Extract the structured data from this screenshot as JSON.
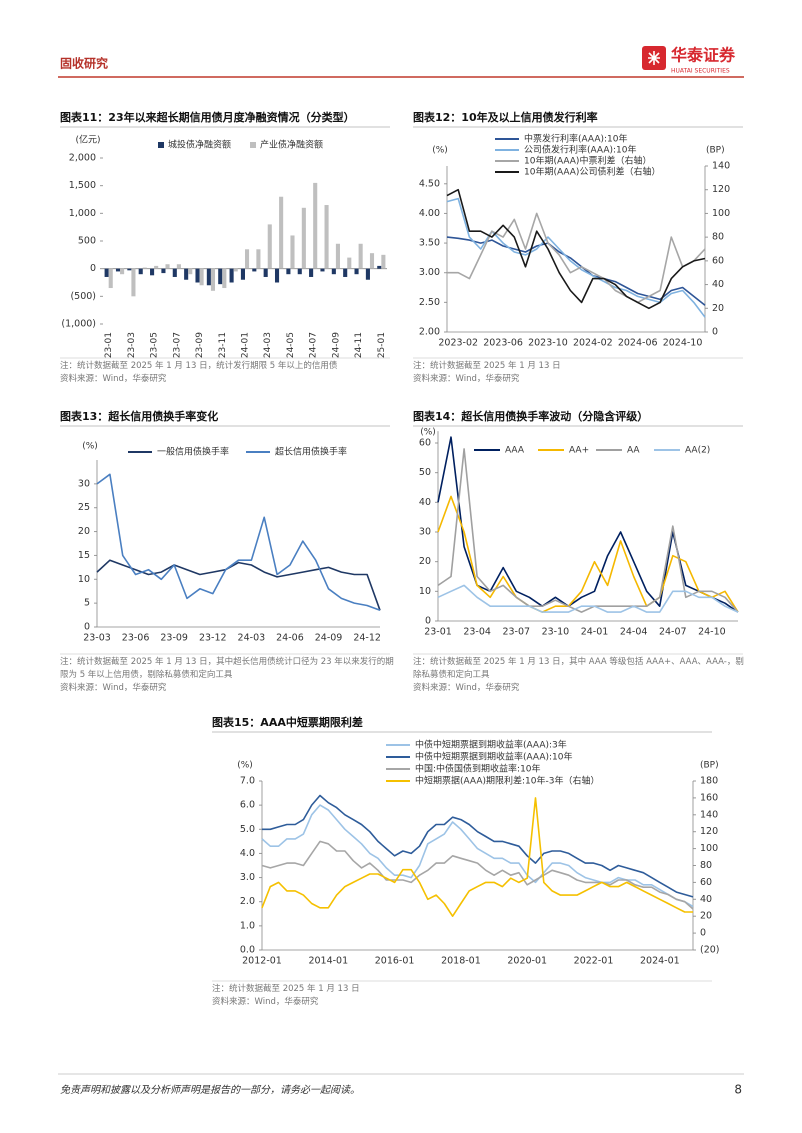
{
  "header": {
    "section": "固收研究",
    "brand": "华泰证券",
    "brand_en": "HUATAI SECURITIES"
  },
  "chart_data": [
    {
      "type": "bar",
      "title": "图表11：23年以来超长期信用债月度净融资情况（分类型）",
      "y_unit": "(亿元)",
      "categories": [
        "23-01",
        null,
        "23-03",
        null,
        "23-05",
        null,
        "23-07",
        null,
        "23-09",
        null,
        "23-11",
        null,
        "24-01",
        null,
        "24-03",
        null,
        "24-05",
        null,
        "24-07",
        null,
        "24-09",
        null,
        "24-11",
        null,
        "25-01"
      ],
      "series": [
        {
          "name": "城投债净融资额",
          "color": "#1f3864",
          "values": [
            -150,
            -50,
            -30,
            -100,
            -120,
            -80,
            -150,
            -200,
            -250,
            -300,
            -280,
            -250,
            -200,
            -50,
            -150,
            -250,
            -100,
            -100,
            -150,
            -50,
            -100,
            -150,
            -100,
            -200,
            50
          ]
        },
        {
          "name": "产业债净融资额",
          "color": "#bfbfbf",
          "values": [
            -350,
            -100,
            -500,
            20,
            50,
            80,
            80,
            -100,
            -300,
            -400,
            -350,
            -50,
            350,
            350,
            800,
            1300,
            600,
            1100,
            1550,
            1150,
            450,
            200,
            450,
            280,
            250
          ]
        }
      ],
      "ylim": [
        -1000,
        2000
      ],
      "yticks": [
        {
          "value": -1000,
          "label": "(1,000)"
        },
        {
          "value": -500,
          "label": "(500)"
        },
        0,
        500,
        {
          "value": 1000,
          "label": "1,000"
        },
        {
          "value": 1500,
          "label": "1,500"
        },
        {
          "value": 2000,
          "label": "2,000"
        }
      ],
      "note": "注：统计数据截至 2025 年 1 月 13 日，统计发行期限 5 年以上的信用债",
      "source": "资料来源：Wind，华泰研究"
    },
    {
      "type": "line",
      "title": "图表12：10年及以上信用债发行利率",
      "y_unit": "(%)",
      "y2_unit": "(BP)",
      "categories": [
        null,
        "2023-02",
        null,
        null,
        null,
        "2023-06",
        null,
        null,
        null,
        "2023-10",
        null,
        null,
        null,
        "2024-02",
        null,
        null,
        null,
        "2024-06",
        null,
        null,
        null,
        "2024-10",
        null,
        null
      ],
      "series": [
        {
          "name": "中票发行利率(AAA):10年",
          "color": "#2e5597",
          "values": [
            3.6,
            3.58,
            3.55,
            3.5,
            3.55,
            3.45,
            3.4,
            3.35,
            3.45,
            3.5,
            3.35,
            3.25,
            3.1,
            2.95,
            2.9,
            2.85,
            2.75,
            2.65,
            2.6,
            2.55,
            2.7,
            2.75,
            2.6,
            2.45
          ]
        },
        {
          "name": "公司债发行利率(AAA):10年",
          "color": "#7fb2e0",
          "values": [
            4.2,
            4.25,
            3.6,
            3.4,
            3.7,
            3.5,
            3.35,
            3.3,
            3.4,
            3.6,
            3.4,
            3.2,
            3.05,
            2.95,
            2.85,
            2.75,
            2.7,
            2.6,
            2.55,
            2.5,
            2.65,
            2.7,
            2.5,
            2.25
          ]
        },
        {
          "name": "10年期(AAA)中票利差（右轴）",
          "color": "#a6a6a6",
          "axis": "y2",
          "values": [
            50,
            50,
            45,
            65,
            85,
            80,
            95,
            70,
            100,
            75,
            65,
            50,
            55,
            50,
            45,
            35,
            30,
            25,
            30,
            35,
            80,
            55,
            60,
            70
          ]
        },
        {
          "name": "10年期(AAA)公司债利差（右轴）",
          "color": "#1a1a1a",
          "axis": "y2",
          "values": [
            115,
            120,
            85,
            85,
            80,
            90,
            80,
            55,
            85,
            70,
            50,
            35,
            25,
            45,
            45,
            40,
            30,
            25,
            20,
            25,
            45,
            55,
            60,
            62
          ]
        }
      ],
      "ylim": [
        2.0,
        4.8
      ],
      "yticks": [
        {
          "value": 2.0,
          "label": "2.00"
        },
        {
          "value": 2.5,
          "label": "2.50"
        },
        {
          "value": 3.0,
          "label": "3.00"
        },
        {
          "value": 3.5,
          "label": "3.50"
        },
        {
          "value": 4.0,
          "label": "4.00"
        },
        {
          "value": 4.5,
          "label": "4.50"
        }
      ],
      "y2lim": [
        0,
        140
      ],
      "y2ticks": [
        0,
        20,
        40,
        60,
        80,
        100,
        120,
        140
      ],
      "note": "注：统计数据截至 2025 年 1 月 13 日",
      "source": "资料来源：Wind，华泰研究"
    },
    {
      "type": "line",
      "title": "图表13：超长信用债换手率变化",
      "y_unit": "(%)",
      "categories": [
        "23-03",
        null,
        null,
        "23-06",
        null,
        null,
        "23-09",
        null,
        null,
        "23-12",
        null,
        null,
        "24-03",
        null,
        null,
        "24-06",
        null,
        null,
        "24-09",
        null,
        null,
        "24-12",
        null
      ],
      "series": [
        {
          "name": "一般信用债换手率",
          "color": "#1f3864",
          "values": [
            11.5,
            14,
            13,
            12,
            11,
            11.5,
            13,
            12,
            11,
            11.5,
            12,
            13.5,
            13,
            11.5,
            10.5,
            11,
            11.5,
            12,
            12.5,
            11.5,
            11,
            11,
            3.5
          ]
        },
        {
          "name": "超长信用债换手率",
          "color": "#4a7fc1",
          "values": [
            30,
            32,
            15,
            11,
            12,
            10,
            13,
            6,
            8,
            7,
            12,
            14,
            14,
            23,
            11,
            13,
            18,
            14,
            8,
            6,
            5,
            4.5,
            3.5
          ]
        }
      ],
      "ylim": [
        0,
        35
      ],
      "yticks": [
        0,
        5,
        10,
        15,
        20,
        25,
        30
      ],
      "note": "注：统计数据截至 2025 年 1 月 13 日，其中超长信用债统计口径为 23 年以来发行的期限为 5 年以上信用债，剔除私募债和定向工具",
      "source": "资料来源：Wind，华泰研究"
    },
    {
      "type": "line",
      "title": "图表14：超长信用债换手率波动（分隐含评级）",
      "y_unit": "(%)",
      "categories": [
        "23-01",
        null,
        null,
        "23-04",
        null,
        null,
        "23-07",
        null,
        null,
        "23-10",
        null,
        null,
        "24-01",
        null,
        null,
        "24-04",
        null,
        null,
        "24-07",
        null,
        null,
        "24-10",
        null,
        null
      ],
      "series": [
        {
          "name": "AAA",
          "color": "#002060",
          "values": [
            40,
            62,
            25,
            12,
            10,
            18,
            10,
            8,
            5,
            8,
            5,
            8,
            10,
            22,
            30,
            20,
            10,
            5,
            30,
            12,
            10,
            8,
            6,
            3
          ]
        },
        {
          "name": "AA+",
          "color": "#f5b800",
          "values": [
            30,
            42,
            30,
            12,
            8,
            15,
            8,
            5,
            3,
            5,
            5,
            10,
            20,
            12,
            27,
            15,
            5,
            8,
            22,
            20,
            10,
            8,
            10,
            3
          ]
        },
        {
          "name": "AA",
          "color": "#a0a0a0",
          "values": [
            12,
            15,
            58,
            15,
            10,
            12,
            8,
            5,
            5,
            7,
            5,
            3,
            5,
            5,
            5,
            5,
            5,
            8,
            32,
            8,
            10,
            10,
            8,
            3
          ]
        },
        {
          "name": "AA(2)",
          "color": "#9dc3e6",
          "values": [
            8,
            10,
            12,
            8,
            5,
            5,
            5,
            5,
            3,
            3,
            3,
            5,
            5,
            3,
            3,
            5,
            3,
            3,
            10,
            10,
            8,
            8,
            5,
            3
          ]
        }
      ],
      "ylim": [
        0,
        64
      ],
      "yticks": [
        0,
        10,
        20,
        30,
        40,
        50,
        60
      ],
      "note": "注：统计数据截至 2025 年 1 月 13 日，其中 AAA 等级包括 AAA+、AAA、AAA-，剔除私募债和定向工具",
      "source": "资料来源：Wind，华泰研究"
    },
    {
      "type": "line",
      "title": "图表15：AAA中短票期限利差",
      "y_unit": "(%)",
      "y2_unit": "(BP)",
      "categories": [
        "2012-01",
        null,
        null,
        null,
        null,
        null,
        null,
        null,
        "2014-01",
        null,
        null,
        null,
        null,
        null,
        null,
        null,
        "2016-01",
        null,
        null,
        null,
        null,
        null,
        null,
        null,
        "2018-01",
        null,
        null,
        null,
        null,
        null,
        null,
        null,
        "2020-01",
        null,
        null,
        null,
        null,
        null,
        null,
        null,
        "2022-01",
        null,
        null,
        null,
        null,
        null,
        null,
        null,
        "2024-01",
        null,
        null,
        null,
        null
      ],
      "series": [
        {
          "name": "中债中短期票据到期收益率(AAA):3年",
          "color": "#9dc3e6",
          "values": [
            4.6,
            4.3,
            4.3,
            4.6,
            4.6,
            4.8,
            5.6,
            6.0,
            5.8,
            5.4,
            5.0,
            4.7,
            4.4,
            4.0,
            3.8,
            3.4,
            3.1,
            3.1,
            3.0,
            3.5,
            4.4,
            4.6,
            4.8,
            5.3,
            5.0,
            4.6,
            4.2,
            4.0,
            3.8,
            3.8,
            3.6,
            3.6,
            3.1,
            2.8,
            3.2,
            3.6,
            3.6,
            3.5,
            3.2,
            3.0,
            2.9,
            2.8,
            2.8,
            3.0,
            2.9,
            2.9,
            2.7,
            2.7,
            2.5,
            2.3,
            2.1,
            2.0,
            1.8
          ]
        },
        {
          "name": "中债中短期票据到期收益率(AAA):10年",
          "color": "#2e5c9a",
          "values": [
            5.0,
            5.0,
            5.1,
            5.2,
            5.2,
            5.4,
            6.0,
            6.4,
            6.1,
            5.9,
            5.6,
            5.4,
            5.2,
            4.9,
            4.5,
            4.2,
            3.9,
            4.1,
            4.0,
            4.3,
            4.9,
            5.2,
            5.2,
            5.5,
            5.4,
            5.2,
            4.9,
            4.7,
            4.5,
            4.5,
            4.4,
            4.3,
            3.9,
            3.6,
            4.0,
            4.1,
            4.1,
            4.0,
            3.8,
            3.6,
            3.6,
            3.5,
            3.3,
            3.5,
            3.4,
            3.3,
            3.2,
            3.0,
            2.8,
            2.6,
            2.4,
            2.3,
            2.2
          ]
        },
        {
          "name": "中国:中债国债到期收益率:10年",
          "color": "#a6a6a6",
          "values": [
            3.5,
            3.4,
            3.5,
            3.6,
            3.6,
            3.5,
            4.0,
            4.5,
            4.4,
            4.1,
            4.1,
            3.7,
            3.4,
            3.6,
            3.3,
            2.9,
            2.9,
            2.9,
            2.8,
            3.1,
            3.3,
            3.6,
            3.6,
            3.9,
            3.8,
            3.7,
            3.6,
            3.3,
            3.1,
            3.3,
            3.1,
            3.2,
            2.7,
            2.9,
            3.1,
            3.3,
            3.2,
            3.1,
            2.9,
            2.8,
            2.8,
            2.8,
            2.7,
            2.9,
            2.9,
            2.7,
            2.6,
            2.6,
            2.4,
            2.3,
            2.1,
            2.0,
            1.7
          ]
        },
        {
          "name": "中短期票据(AAA)期限利差:10年-3年（右轴）",
          "color": "#f5c000",
          "axis": "y2",
          "values": [
            30,
            55,
            60,
            50,
            50,
            45,
            35,
            30,
            30,
            45,
            55,
            60,
            65,
            70,
            70,
            65,
            60,
            75,
            75,
            60,
            40,
            45,
            35,
            20,
            35,
            50,
            55,
            60,
            60,
            55,
            65,
            60,
            65,
            160,
            60,
            50,
            45,
            45,
            45,
            50,
            55,
            60,
            55,
            55,
            60,
            55,
            50,
            45,
            40,
            35,
            30,
            25,
            25
          ]
        }
      ],
      "ylim": [
        0,
        7
      ],
      "yticks": [
        {
          "value": 0,
          "label": "0.0"
        },
        {
          "value": 1,
          "label": "1.0"
        },
        {
          "value": 2,
          "label": "2.0"
        },
        {
          "value": 3,
          "label": "3.0"
        },
        {
          "value": 4,
          "label": "4.0"
        },
        {
          "value": 5,
          "label": "5.0"
        },
        {
          "value": 6,
          "label": "6.0"
        },
        {
          "value": 7,
          "label": "7.0"
        }
      ],
      "y2lim": [
        -20,
        180
      ],
      "y2ticks": [
        {
          "value": -20,
          "label": "(20)"
        },
        0,
        20,
        40,
        60,
        80,
        100,
        120,
        140,
        160,
        180
      ],
      "note": "注：统计数据截至 2025 年 1 月 13 日",
      "source": "资料来源：Wind，华泰研究"
    }
  ],
  "footer": {
    "disclaimer": "免责声明和披露以及分析师声明是报告的一部分，请务必一起阅读。",
    "page": 8
  }
}
